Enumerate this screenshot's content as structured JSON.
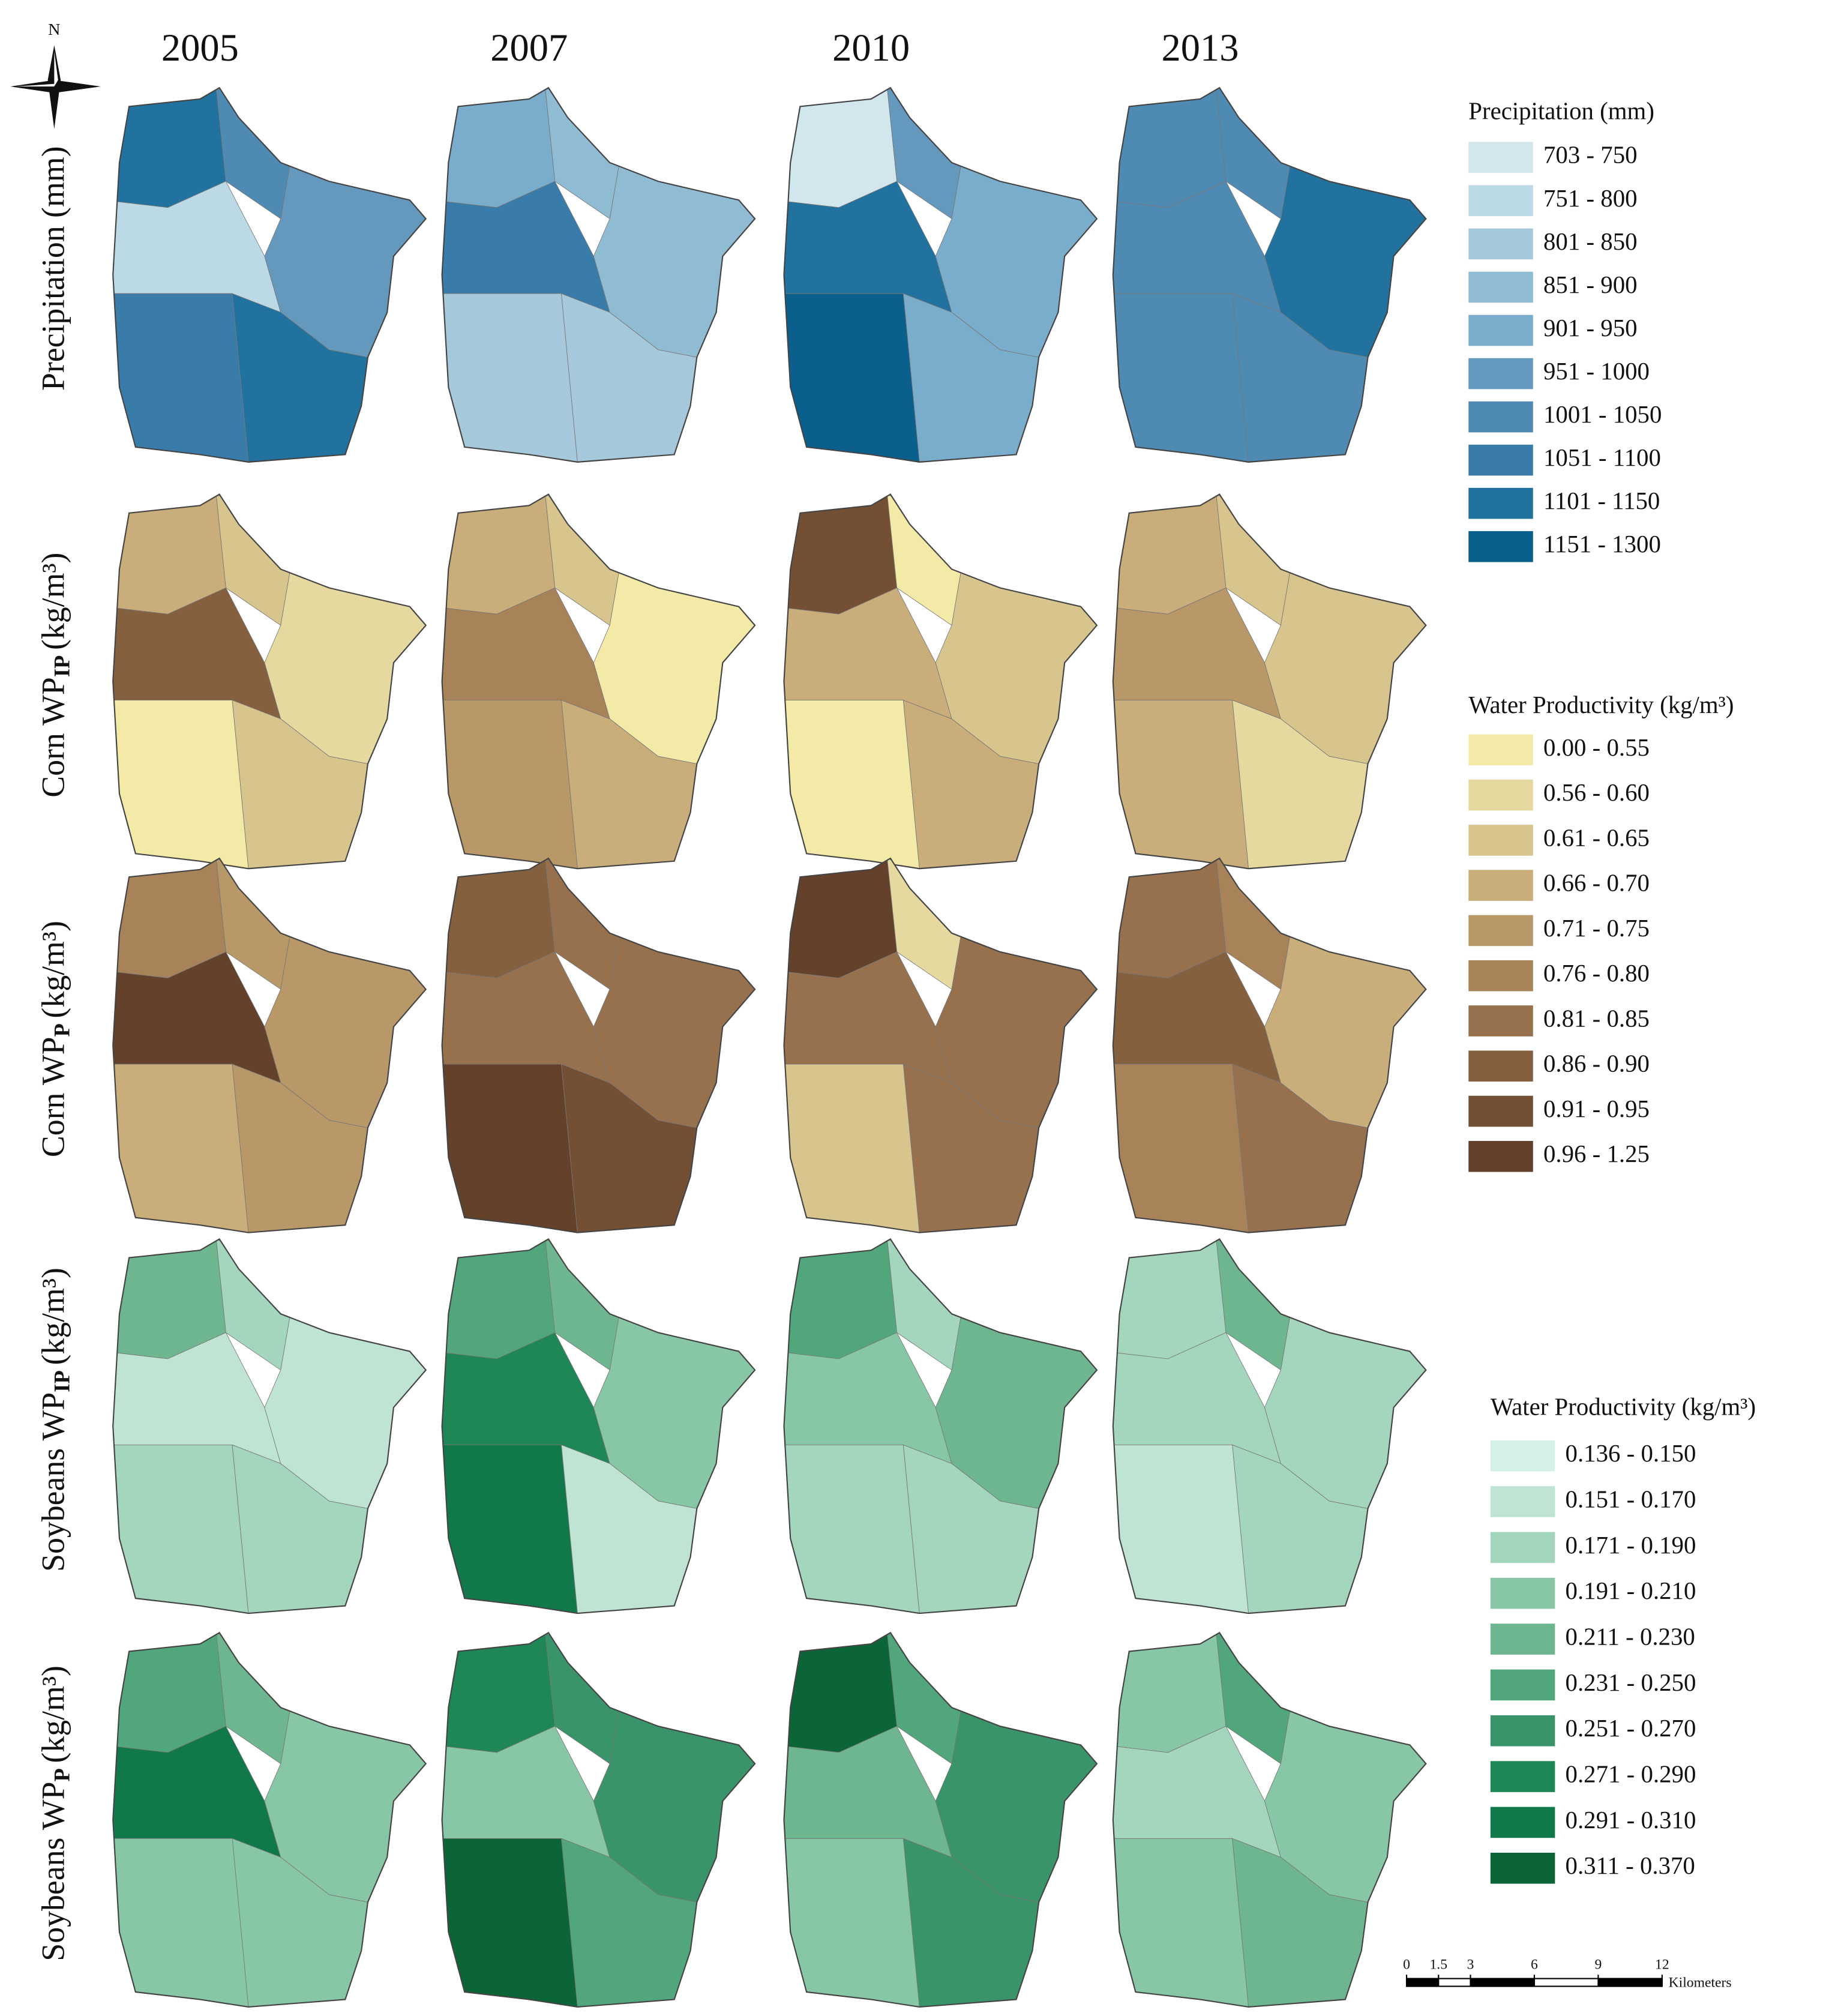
{
  "compass": "N",
  "years": [
    "2005",
    "2007",
    "2010",
    "2013"
  ],
  "rows": [
    {
      "label": "Precipitation (mm)"
    },
    {
      "label": "Corn WP",
      "sub": "IP",
      "unit": "(kg/m³)"
    },
    {
      "label": "Corn WP",
      "sub": "P",
      "unit": "(kg/m³)"
    },
    {
      "label": "Soybeans WP",
      "sub": "IP",
      "unit": "(kg/m³)"
    },
    {
      "label": "Soybeans WP",
      "sub": "P",
      "unit": "(kg/m³)"
    }
  ],
  "legends": [
    {
      "title": "Precipitation (mm)",
      "items": [
        {
          "label": "703 - 750",
          "color": "#d2e6ee"
        },
        {
          "label": "751 - 800",
          "color": "#bcd9e6"
        },
        {
          "label": "801 - 850",
          "color": "#a5c9da"
        },
        {
          "label": "851 - 900",
          "color": "#8fbbd3"
        },
        {
          "label": "901 - 950",
          "color": "#7aaccb"
        },
        {
          "label": "951 - 1000",
          "color": "#6499bd"
        },
        {
          "label": "1001 - 1050",
          "color": "#4f8ab3"
        },
        {
          "label": "1051 - 1100",
          "color": "#3a7ca9"
        },
        {
          "label": "1101 - 1150",
          "color": "#22729f"
        },
        {
          "label": "1151 - 1300",
          "color": "#0b5f8c"
        }
      ]
    },
    {
      "title": "Water Productivity (kg/m³)",
      "items": [
        {
          "label": "0.00 - 0.55",
          "color": "#f2eaa6"
        },
        {
          "label": "0.56 - 0.60",
          "color": "#e6d9a0"
        },
        {
          "label": "0.61 - 0.65",
          "color": "#d8c58d"
        },
        {
          "label": "0.66 - 0.70",
          "color": "#c9ad7a"
        },
        {
          "label": "0.71 - 0.75",
          "color": "#b89868"
        },
        {
          "label": "0.76 - 0.80",
          "color": "#a88259"
        },
        {
          "label": "0.81 - 0.85",
          "color": "#97704e"
        },
        {
          "label": "0.86 - 0.90",
          "color": "#85603f"
        },
        {
          "label": "0.91 - 0.95",
          "color": "#735034"
        },
        {
          "label": "0.96 - 1.25",
          "color": "#64412a"
        }
      ]
    },
    {
      "title": "Water Productivity (kg/m³)",
      "items": [
        {
          "label": "0.136 - 0.150",
          "color": "#d5f0e4"
        },
        {
          "label": "0.151 - 0.170",
          "color": "#bfe4d3"
        },
        {
          "label": "0.171 - 0.190",
          "color": "#a3d6bd"
        },
        {
          "label": "0.191 - 0.210",
          "color": "#87c7a6"
        },
        {
          "label": "0.211 - 0.230",
          "color": "#6eb68f"
        },
        {
          "label": "0.231 - 0.250",
          "color": "#52a67c"
        },
        {
          "label": "0.251 - 0.270",
          "color": "#3a9469"
        },
        {
          "label": "0.271 - 0.290",
          "color": "#1f8656"
        },
        {
          "label": "0.291 - 0.310",
          "color": "#11784a"
        },
        {
          "label": "0.311 - 0.370",
          "color": "#0b6536"
        }
      ]
    }
  ],
  "scale_bar": {
    "ticks": [
      0,
      1.5,
      3,
      6,
      9,
      12
    ],
    "unit": "Kilometers"
  }
}
